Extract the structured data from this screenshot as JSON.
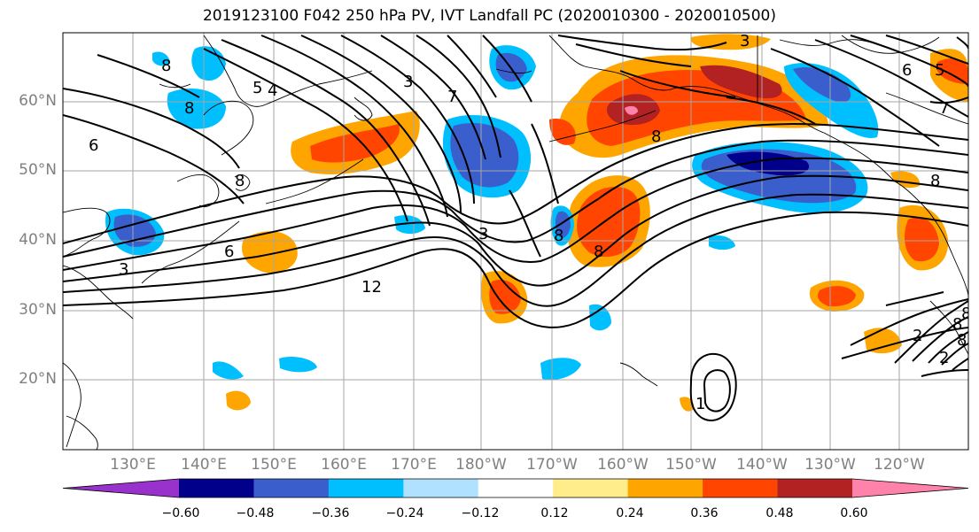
{
  "title": "2019123100 F042 250 hPa PV, IVT Landfall PC (2020010300 - 2020010500)",
  "latitudes": [
    {
      "label": "60°N",
      "deg": 60
    },
    {
      "label": "50°N",
      "deg": 50
    },
    {
      "label": "40°N",
      "deg": 40
    },
    {
      "label": "30°N",
      "deg": 30
    },
    {
      "label": "20°N",
      "deg": 20
    }
  ],
  "longitudes": [
    {
      "label": "130°E",
      "deg": 130
    },
    {
      "label": "140°E",
      "deg": 140
    },
    {
      "label": "150°E",
      "deg": 150
    },
    {
      "label": "160°E",
      "deg": 160
    },
    {
      "label": "170°E",
      "deg": 170
    },
    {
      "label": "180°W",
      "deg": 180
    },
    {
      "label": "170°W",
      "deg": 190
    },
    {
      "label": "160°W",
      "deg": 200
    },
    {
      "label": "150°W",
      "deg": 210
    },
    {
      "label": "140°W",
      "deg": 220
    },
    {
      "label": "130°W",
      "deg": 230
    },
    {
      "label": "120°W",
      "deg": 240
    }
  ],
  "colorbar": {
    "colors": [
      "#9932cc",
      "#00008b",
      "#3a5fcd",
      "#00bfff",
      "#b0e2ff",
      "#ffffff",
      "#ffec8b",
      "#ffa500",
      "#ff4500",
      "#b22222",
      "#ff82ab"
    ],
    "tick_labels": [
      "−0.60",
      "−0.48",
      "−0.36",
      "−0.24",
      "−0.12",
      "0.12",
      "0.24",
      "0.36",
      "0.48",
      "0.60"
    ]
  },
  "contour_labels": [
    "8",
    "8",
    "5",
    "4",
    "3",
    "7",
    "6",
    "6",
    "5",
    "7",
    "8",
    "8",
    "6",
    "8",
    "8",
    "3",
    "12",
    "3",
    "8",
    "3",
    "2",
    "8",
    "1",
    "2",
    "8",
    "8"
  ]
}
